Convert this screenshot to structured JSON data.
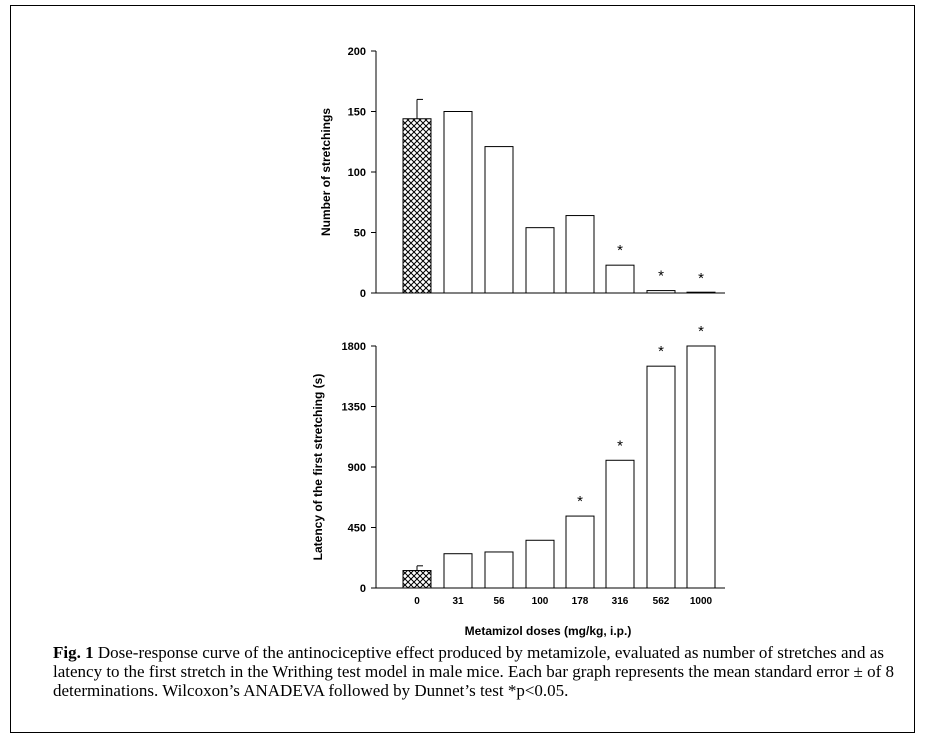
{
  "colors": {
    "bar_fill": "#ffffff",
    "stroke": "#000000",
    "control_hatch": "crosshatch"
  },
  "x_categories": [
    "0",
    "31",
    "56",
    "100",
    "178",
    "316",
    "562",
    "1000"
  ],
  "x_axis_label": "Metamizol doses (mg/kg, i.p.)",
  "chart_data": [
    {
      "type": "bar",
      "ylabel": "Number of stretchings",
      "ylim": [
        0,
        200
      ],
      "yticks": [
        0,
        50,
        100,
        150,
        200
      ],
      "categories": [
        "0",
        "31",
        "56",
        "100",
        "178",
        "316",
        "562",
        "1000"
      ],
      "values": [
        144,
        150,
        121,
        54,
        64,
        23,
        2,
        0
      ],
      "error": [
        16,
        0,
        0,
        0,
        0,
        0,
        0,
        0
      ],
      "significant": [
        false,
        false,
        false,
        false,
        false,
        true,
        true,
        true
      ],
      "significance_marker": "*",
      "show_category_labels": false
    },
    {
      "type": "bar",
      "ylabel": "Latency of the first stretching (s)",
      "ylim": [
        0,
        1800
      ],
      "yticks": [
        0,
        450,
        900,
        1350,
        1800
      ],
      "categories": [
        "0",
        "31",
        "56",
        "100",
        "178",
        "316",
        "562",
        "1000"
      ],
      "values": [
        130,
        255,
        268,
        355,
        535,
        950,
        1650,
        1800
      ],
      "error": [
        35,
        0,
        0,
        0,
        0,
        0,
        0,
        0
      ],
      "significant": [
        false,
        false,
        false,
        false,
        true,
        true,
        true,
        true
      ],
      "significance_marker": "*",
      "show_category_labels": true
    }
  ],
  "caption": {
    "label": "Fig. 1",
    "text": " Dose-response curve of the antinociceptive effect produced by metamizole, evaluated as number of stretches and as latency to the first stretch in the Writhing test model in male mice. Each bar graph represents the mean standard error ± of 8 determinations. Wilcoxon’s ANADEVA followed by Dunnet’s test *p<0.05."
  }
}
